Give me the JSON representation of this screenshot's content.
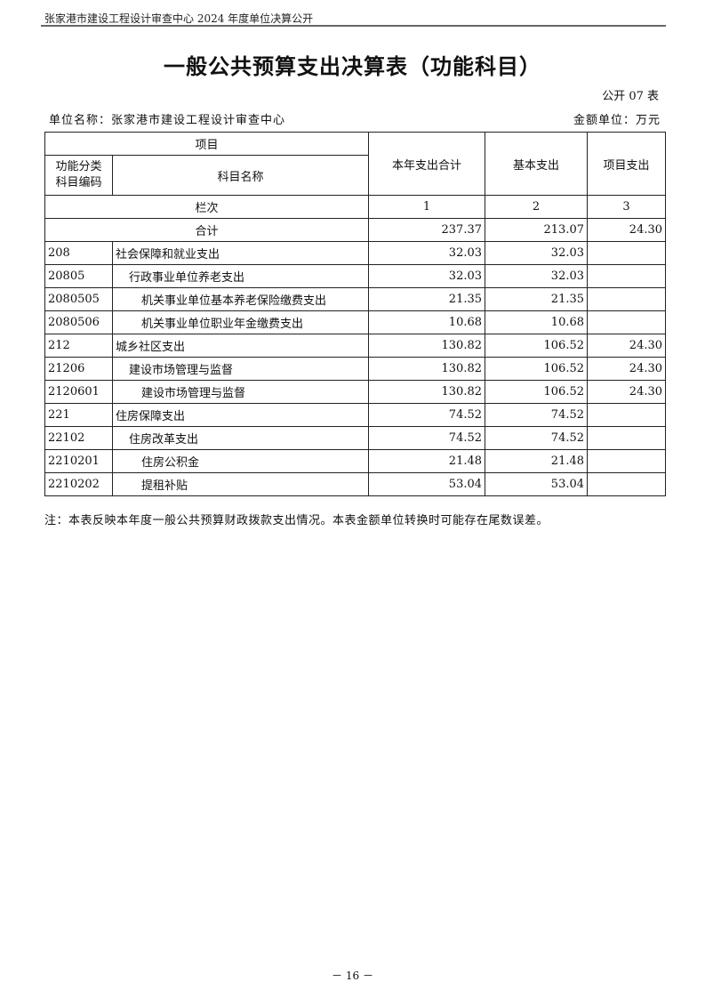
{
  "running_head": "张家港市建设工程设计审查中心 2024 年度单位决算公开",
  "title": "一般公共预算支出决算表（功能科目）",
  "table_no": "公开 07 表",
  "unit_name": "单位名称：张家港市建设工程设计审查中心",
  "amount_unit": "金额单位：万元",
  "table": {
    "header_project": "项目",
    "header_code": "功能分类科目编码",
    "header_name": "科目名称",
    "columns": [
      "本年支出合计",
      "基本支出",
      "项目支出"
    ],
    "column_index_label": "栏次",
    "column_indexes": [
      "1",
      "2",
      "3"
    ],
    "total_label": "合计",
    "total": [
      "237.37",
      "213.07",
      "24.30"
    ],
    "rows": [
      {
        "code": "208",
        "name": "社会保障和就业支出",
        "level": 0,
        "values": [
          "32.03",
          "32.03",
          ""
        ]
      },
      {
        "code": "20805",
        "name": "行政事业单位养老支出",
        "level": 1,
        "values": [
          "32.03",
          "32.03",
          ""
        ]
      },
      {
        "code": "2080505",
        "name": "机关事业单位基本养老保险缴费支出",
        "level": 2,
        "values": [
          "21.35",
          "21.35",
          ""
        ]
      },
      {
        "code": "2080506",
        "name": "机关事业单位职业年金缴费支出",
        "level": 2,
        "values": [
          "10.68",
          "10.68",
          ""
        ]
      },
      {
        "code": "212",
        "name": "城乡社区支出",
        "level": 0,
        "values": [
          "130.82",
          "106.52",
          "24.30"
        ]
      },
      {
        "code": "21206",
        "name": "建设市场管理与监督",
        "level": 1,
        "values": [
          "130.82",
          "106.52",
          "24.30"
        ]
      },
      {
        "code": "2120601",
        "name": "建设市场管理与监督",
        "level": 2,
        "values": [
          "130.82",
          "106.52",
          "24.30"
        ]
      },
      {
        "code": "221",
        "name": "住房保障支出",
        "level": 0,
        "values": [
          "74.52",
          "74.52",
          ""
        ]
      },
      {
        "code": "22102",
        "name": "住房改革支出",
        "level": 1,
        "values": [
          "74.52",
          "74.52",
          ""
        ]
      },
      {
        "code": "2210201",
        "name": "住房公积金",
        "level": 2,
        "values": [
          "21.48",
          "21.48",
          ""
        ]
      },
      {
        "code": "2210202",
        "name": "提租补贴",
        "level": 2,
        "values": [
          "53.04",
          "53.04",
          ""
        ]
      }
    ]
  },
  "note": "注：本表反映本年度一般公共预算财政拨款支出情况。本表金额单位转换时可能存在尾数误差。",
  "page_number": "－ 16 －"
}
